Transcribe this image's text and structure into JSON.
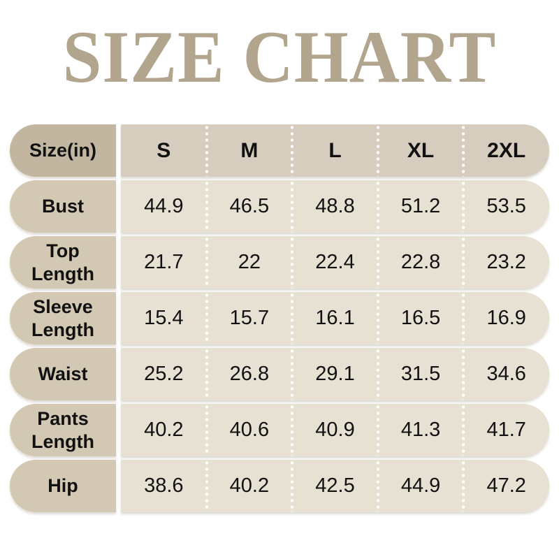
{
  "page_title": "SIZE CHART",
  "colors": {
    "background": "#ffffff",
    "title_text": "#b2a58e",
    "header_label_bg": "#c3b6a1",
    "header_band_bg": "#d6cdbe",
    "row_label_bg": "#d3c8b3",
    "row_band_bg": "#e7e1d3",
    "cell_text": "#111111",
    "divider_dots": "#ffffff"
  },
  "chart_data": {
    "type": "table",
    "title": "SIZE CHART",
    "unit_note": "Size(in)",
    "columns": [
      "Size(in)",
      "S",
      "M",
      "L",
      "XL",
      "2XL"
    ],
    "rows": [
      {
        "label": "Bust",
        "values": [
          "44.9",
          "46.5",
          "48.8",
          "51.2",
          "53.5"
        ]
      },
      {
        "label": "Top Length",
        "values": [
          "21.7",
          "22",
          "22.4",
          "22.8",
          "23.2"
        ]
      },
      {
        "label": "Sleeve Length",
        "values": [
          "15.4",
          "15.7",
          "16.1",
          "16.5",
          "16.9"
        ]
      },
      {
        "label": "Waist",
        "values": [
          "25.2",
          "26.8",
          "29.1",
          "31.5",
          "34.6"
        ]
      },
      {
        "label": "Pants Length",
        "values": [
          "40.2",
          "40.6",
          "40.9",
          "41.3",
          "41.7"
        ]
      },
      {
        "label": "Hip",
        "values": [
          "38.6",
          "40.2",
          "42.5",
          "44.9",
          "47.2"
        ]
      }
    ]
  }
}
